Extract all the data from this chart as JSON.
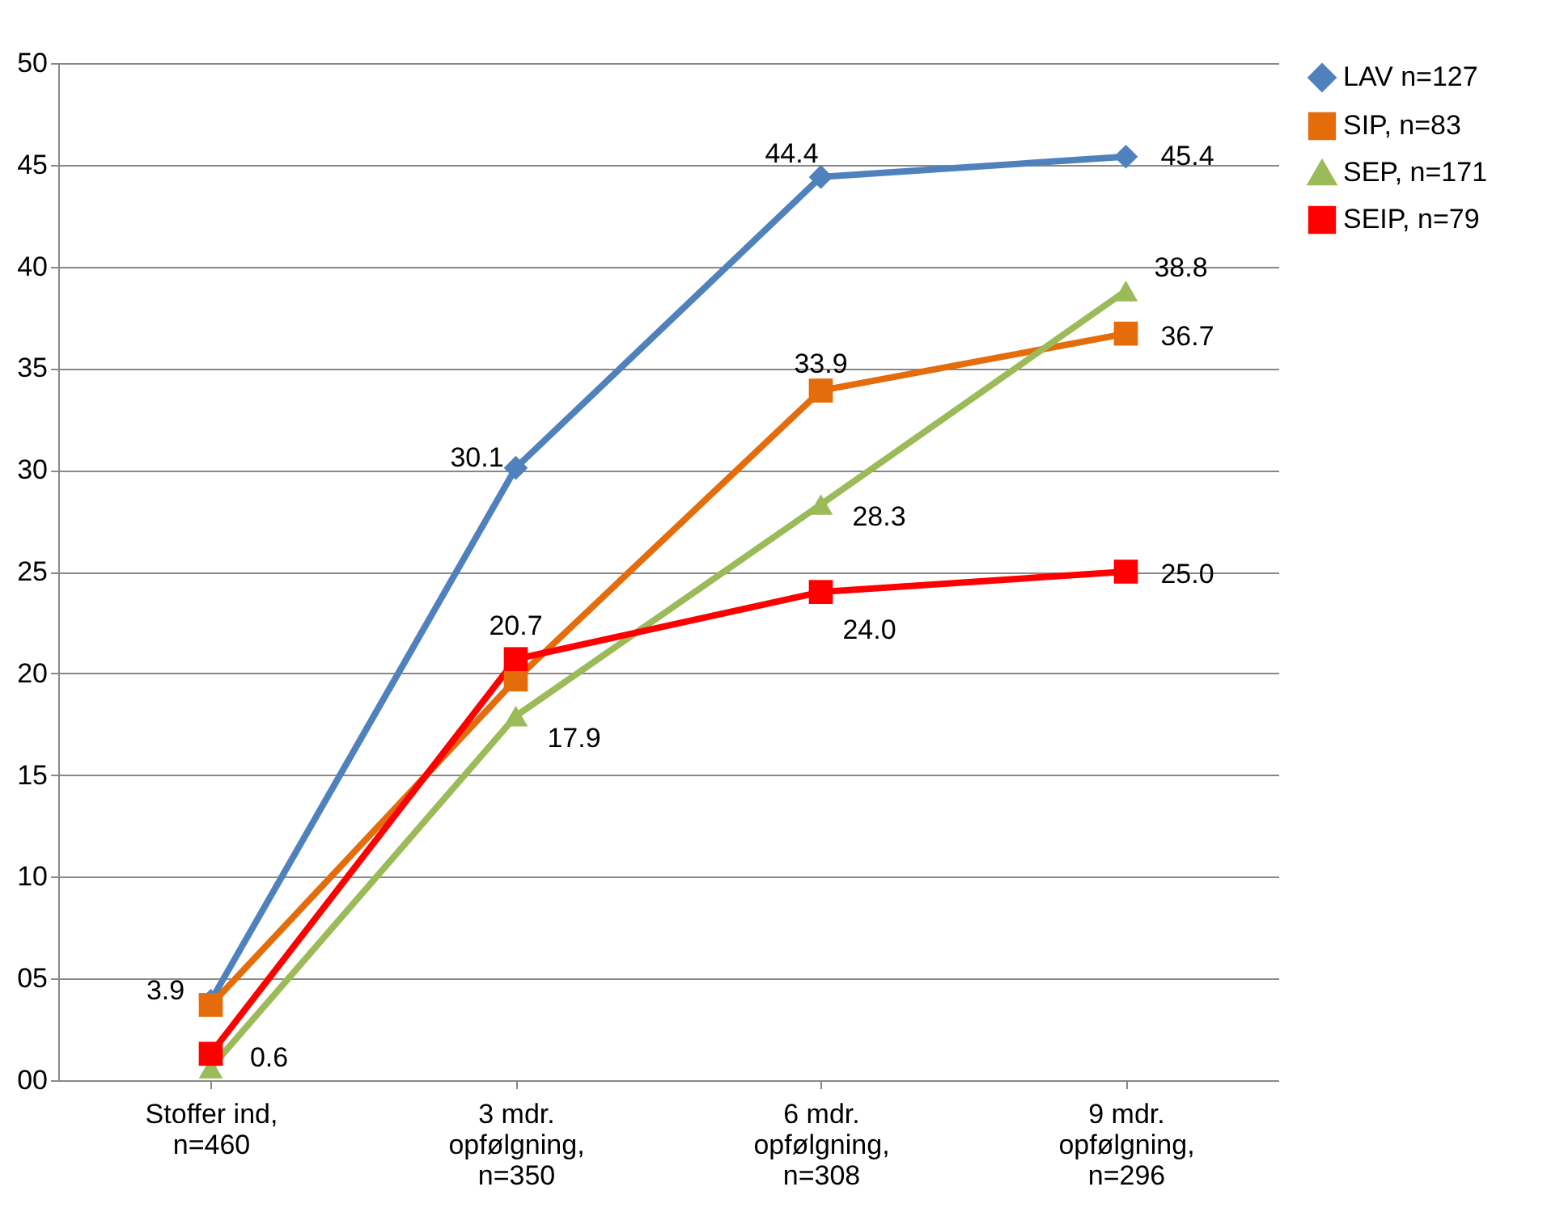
{
  "chart_data": {
    "type": "line",
    "categories": [
      "Stoffer ind,\nn=460",
      "3 mdr.\nopfølgning,\nn=350",
      "6 mdr.\nopfølgning,\nn=308",
      "9 mdr.\nopfølgning,\nn=296"
    ],
    "series": [
      {
        "name": "LAV n=127",
        "color": "#4f81bd",
        "marker": "diamond",
        "values": [
          3.9,
          30.1,
          44.4,
          45.4
        ],
        "value_labels": [
          "3.9",
          "30.1",
          "44.4",
          "45.4"
        ]
      },
      {
        "name": "SIP, n=83",
        "color": "#e46c0a",
        "marker": "square",
        "values": [
          3.7,
          19.7,
          33.9,
          36.7
        ],
        "value_labels": [
          null,
          null,
          "33.9",
          "36.7"
        ]
      },
      {
        "name": "SEP, n=171",
        "color": "#9bbb59",
        "marker": "triangle",
        "values": [
          0.6,
          17.9,
          28.3,
          38.8
        ],
        "value_labels": [
          "0.6",
          "17.9",
          "28.3",
          "38.8"
        ]
      },
      {
        "name": "SEIP, n=79",
        "color": "#ff0000",
        "marker": "square",
        "values": [
          1.3,
          20.7,
          24.0,
          25.0
        ],
        "value_labels": [
          null,
          "20.7",
          "24.0",
          "25.0"
        ]
      }
    ],
    "ylim": [
      0,
      50
    ],
    "yticks": [
      {
        "value": 0,
        "label": "00"
      },
      {
        "value": 5,
        "label": "05"
      },
      10,
      15,
      20,
      25,
      30,
      35,
      40,
      45,
      50
    ],
    "grid": "y",
    "legend": "right",
    "line_style": "solid"
  }
}
